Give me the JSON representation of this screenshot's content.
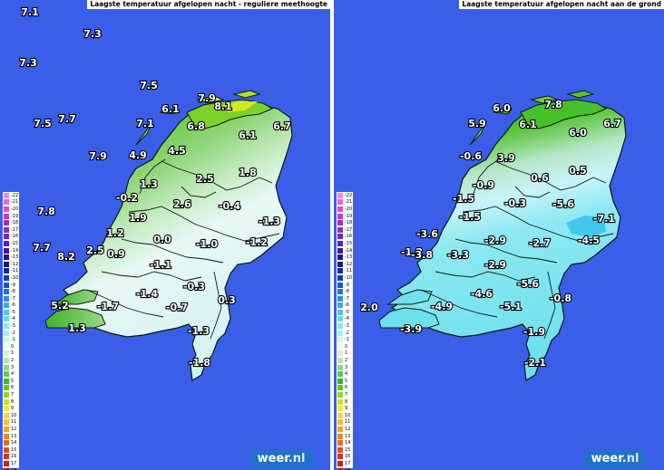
{
  "left_panel": {
    "title": "Laagste temperatuur afgelopen nacht - reguliere meethoogte",
    "labels": [
      {
        "v": "7.1"
      },
      {
        "v": "7.3"
      },
      {
        "v": "7.3"
      },
      {
        "v": "7.5"
      },
      {
        "v": "7.9"
      },
      {
        "v": "8.1"
      },
      {
        "v": "6.1"
      },
      {
        "v": "7.1"
      },
      {
        "v": "7.7"
      },
      {
        "v": "7.5"
      },
      {
        "v": "6.8"
      },
      {
        "v": "6.1"
      },
      {
        "v": "6.7"
      },
      {
        "v": "7.9"
      },
      {
        "v": "4.9"
      },
      {
        "v": "4.5"
      },
      {
        "v": "1.8"
      },
      {
        "v": "1.3"
      },
      {
        "v": "2.5"
      },
      {
        "v": "-0.2"
      },
      {
        "v": "2.6"
      },
      {
        "v": "-0.4"
      },
      {
        "v": "7.8"
      },
      {
        "v": "1.9"
      },
      {
        "v": "-1.3"
      },
      {
        "v": "1.2"
      },
      {
        "v": "0.0"
      },
      {
        "v": "-1.0"
      },
      {
        "v": "-1.2"
      },
      {
        "v": "7.7"
      },
      {
        "v": "2.5"
      },
      {
        "v": "8.2"
      },
      {
        "v": "0.9"
      },
      {
        "v": "-1.1"
      },
      {
        "v": "-0.3"
      },
      {
        "v": "-1.4"
      },
      {
        "v": "0.3"
      },
      {
        "v": "5.2"
      },
      {
        "v": "-1.7"
      },
      {
        "v": "-0.7"
      },
      {
        "v": "1.3"
      },
      {
        "v": "-1.3"
      },
      {
        "v": "-1.8"
      }
    ]
  },
  "right_panel": {
    "title": "Laagste temperatuur afgelopen nacht aan de grond",
    "labels": [
      {
        "v": "6.0"
      },
      {
        "v": "7.8"
      },
      {
        "v": "5.9"
      },
      {
        "v": "6.1"
      },
      {
        "v": "6.0"
      },
      {
        "v": "6.7"
      },
      {
        "v": "-0.6"
      },
      {
        "v": "3.9"
      },
      {
        "v": "0.5"
      },
      {
        "v": "-0.9"
      },
      {
        "v": "0.6"
      },
      {
        "v": "-1.5"
      },
      {
        "v": "-0.3"
      },
      {
        "v": "-5.6"
      },
      {
        "v": "-7.1"
      },
      {
        "v": "-1.5"
      },
      {
        "v": "-3.6"
      },
      {
        "v": "-2.9"
      },
      {
        "v": "-2.7"
      },
      {
        "v": "-4.5"
      },
      {
        "v": "-1.2"
      },
      {
        "v": "-3.8"
      },
      {
        "v": "-3.3"
      },
      {
        "v": "-2.9"
      },
      {
        "v": "-5.6"
      },
      {
        "v": "-4.6"
      },
      {
        "v": "-0.8"
      },
      {
        "v": "2.0"
      },
      {
        "v": "-4.9"
      },
      {
        "v": "-5.1"
      },
      {
        "v": "-3.9"
      },
      {
        "v": "-1.9"
      },
      {
        "v": "-2.1"
      }
    ]
  },
  "legend": {
    "unit": "°C",
    "entries": [
      {
        "label": "-22",
        "color": "#ff7fff"
      },
      {
        "label": "-21",
        "color": "#f05cf0"
      },
      {
        "label": "-20",
        "color": "#d94ad9"
      },
      {
        "label": "-19",
        "color": "#c23ac2"
      },
      {
        "label": "-18",
        "color": "#a82ea8"
      },
      {
        "label": "-17",
        "color": "#8e2ad0"
      },
      {
        "label": "-16",
        "color": "#7424c8"
      },
      {
        "label": "-15",
        "color": "#5a1eb8"
      },
      {
        "label": "-14",
        "color": "#3c18a8"
      },
      {
        "label": "-13",
        "color": "#241298"
      },
      {
        "label": "-12",
        "color": "#101a8a"
      },
      {
        "label": "-11",
        "color": "#0a2aa0"
      },
      {
        "label": "-10",
        "color": "#0840b8"
      },
      {
        "label": "-9",
        "color": "#0c5ad0"
      },
      {
        "label": "-8",
        "color": "#1a74e0"
      },
      {
        "label": "-7",
        "color": "#2a90ea"
      },
      {
        "label": "-6",
        "color": "#3aaaf0"
      },
      {
        "label": "-5",
        "color": "#4cc4f4"
      },
      {
        "label": "-4",
        "color": "#62d8f6"
      },
      {
        "label": "-3",
        "color": "#80e6f8"
      },
      {
        "label": "-2",
        "color": "#a2f0fa"
      },
      {
        "label": "-1",
        "color": "#c8f8fc"
      },
      {
        "label": "0",
        "color": "#ecfcfe"
      },
      {
        "label": "1",
        "color": "#d6f2d2"
      },
      {
        "label": "2",
        "color": "#b6e6a6"
      },
      {
        "label": "3",
        "color": "#8ed87a"
      },
      {
        "label": "4",
        "color": "#62c84c"
      },
      {
        "label": "5",
        "color": "#3cb424"
      },
      {
        "label": "6",
        "color": "#5ac81e"
      },
      {
        "label": "7",
        "color": "#96d81a"
      },
      {
        "label": "8",
        "color": "#c8e620"
      },
      {
        "label": "9",
        "color": "#f0ec2a"
      },
      {
        "label": "10",
        "color": "#fad828"
      },
      {
        "label": "11",
        "color": "#f8c020"
      },
      {
        "label": "12",
        "color": "#f6a41c"
      },
      {
        "label": "13",
        "color": "#f08818"
      },
      {
        "label": "14",
        "color": "#e86c14"
      },
      {
        "label": "15",
        "color": "#e05012"
      },
      {
        "label": "16",
        "color": "#d63614"
      },
      {
        "label": "17",
        "color": "#c82018"
      },
      {
        "label": "18",
        "color": "#b8141c"
      },
      {
        "label": "19",
        "color": "#a00c1c"
      }
    ]
  },
  "logo": {
    "word": "weer",
    "suffix": ".nl"
  },
  "colors": {
    "sea": "#3a5ee8",
    "land_north_left": "#4cc228",
    "land_south_left": "#dff4f0",
    "land_right": "#7ee4ee"
  }
}
